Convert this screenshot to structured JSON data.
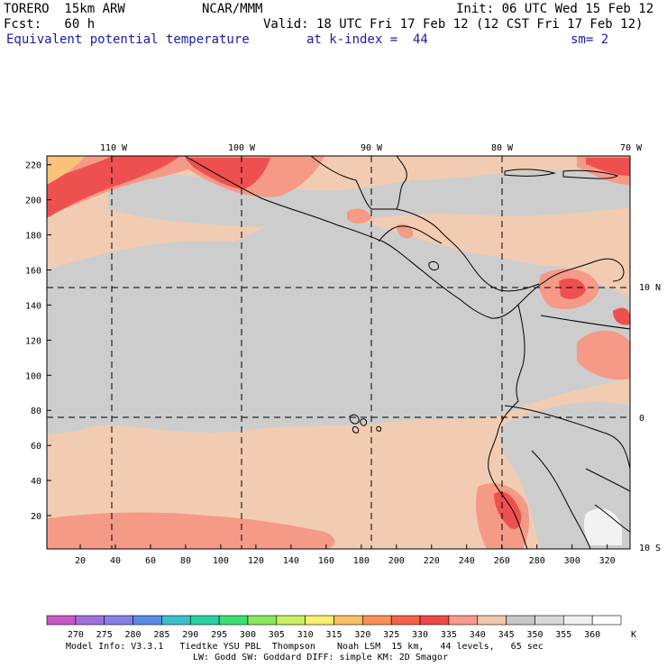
{
  "header": {
    "line1_left": "TORERO  15km ARW",
    "line1_center": "NCAR/MMM",
    "line1_right": "Init: 06 UTC Wed 15 Feb 12",
    "line2_left": "Fcst:   60 h",
    "line2_right": "Valid: 18 UTC Fri 17 Feb 12 (12 CST Fri 17 Feb 12)",
    "line3_field": "Equivalent potential temperature",
    "line3_level": "at k-index =  44",
    "line3_smooth": "sm= 2"
  },
  "axes": {
    "top_lon_labels": [
      "110 W",
      "100 W",
      "90 W",
      "80 W",
      "70 W"
    ],
    "right_lat_labels": [
      "10 N",
      "0",
      "10 S"
    ],
    "left_y_ticks": [
      220,
      200,
      180,
      160,
      140,
      120,
      100,
      80,
      60,
      40,
      20
    ],
    "bottom_x_ticks": [
      20,
      40,
      60,
      80,
      100,
      120,
      140,
      160,
      180,
      200,
      220,
      240,
      260,
      280,
      300,
      320
    ],
    "grid_range": {
      "x": [
        1,
        333
      ],
      "y": [
        1,
        225
      ]
    }
  },
  "colorbar": {
    "unit": "K",
    "levels": [
      "270",
      "275",
      "280",
      "285",
      "290",
      "295",
      "300",
      "305",
      "310",
      "315",
      "320",
      "325",
      "330",
      "335",
      "340",
      "345",
      "350",
      "355",
      "360"
    ],
    "colors": [
      "#c857c8",
      "#a06ed8",
      "#8a7ee8",
      "#5a8ae8",
      "#3ac0c8",
      "#2ad0a0",
      "#3ae070",
      "#88e858",
      "#c8f060",
      "#f8f070",
      "#f8c060",
      "#f89058",
      "#f86048",
      "#f04848",
      "#f89a88",
      "#f0c8b0",
      "#c8c8c8",
      "#d8d8d8",
      "#f0f0f0",
      "#ffffff"
    ]
  },
  "fill_colors": {
    "salmon_light": "#f1ccb2",
    "gray": "#cdcdcd",
    "salmon": "#f59a86",
    "red": "#ee5050",
    "orange": "#f9c17a",
    "white": "#f2f2f2"
  },
  "footer": {
    "line1": "Model Info: V3.3.1   Tiedtke YSU PBL  Thompson    Noah LSM  15 km,   44 levels,   65 sec",
    "line2": "LW: Godd SW: Goddard DIFF: simple KM: 2D Smagor"
  }
}
